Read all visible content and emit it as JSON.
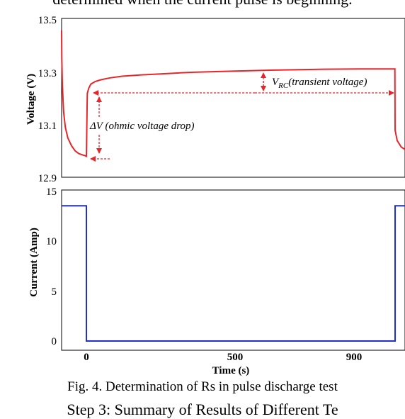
{
  "header_text": "determined when the current pulse is beginning.",
  "caption": "Fig. 4. Determination of Rs in pulse discharge test",
  "footer_text": "Step 3: Summary of Results of Different Te",
  "chart_data": [
    {
      "type": "line",
      "ylabel": "Voltage (V)",
      "yticks": [
        "13.5",
        "13.3",
        "13.1",
        "12.9"
      ],
      "ylim": [
        12.9,
        13.5
      ],
      "xlim": [
        -100,
        1200
      ],
      "series": [
        {
          "color": "#e8262a",
          "x": [
            -100,
            -99,
            -97,
            -92,
            -85,
            -75,
            -60,
            -45,
            -30,
            -15,
            -5,
            0,
            3,
            8,
            15,
            30,
            50,
            80,
            120,
            180,
            250,
            350,
            500,
            650,
            800,
            950,
            1080,
            1099,
            1100,
            1110,
            1130,
            1160,
            1200
          ],
          "y": [
            13.46,
            13.35,
            13.25,
            13.15,
            13.09,
            13.05,
            13.02,
            13.0,
            12.99,
            12.985,
            12.982,
            12.98,
            13.22,
            13.24,
            13.255,
            13.265,
            13.272,
            13.279,
            13.285,
            13.29,
            13.294,
            13.3,
            13.305,
            13.309,
            13.312,
            13.313,
            13.313,
            13.313,
            13.08,
            13.04,
            13.015,
            13.0,
            12.99
          ]
        }
      ],
      "annotations": {
        "vrc_main": "V",
        "vrc_sub": "RC",
        "vrc_text": "(transient voltage)",
        "dv_main": "ΔV",
        "dv_text": " (ohmic voltage drop)"
      }
    },
    {
      "type": "line",
      "ylabel": "Current (Amp)",
      "xlabel": "Time (s)",
      "yticks": [
        "15",
        "10",
        "5",
        "0"
      ],
      "xticks": [
        "0",
        "500",
        "900"
      ],
      "ylim": [
        0,
        15
      ],
      "xlim": [
        -100,
        1200
      ],
      "series": [
        {
          "color": "#1f2fd6",
          "x": [
            -100,
            0,
            0,
            1100,
            1100,
            1200
          ],
          "y": [
            13.5,
            13.5,
            0,
            0,
            13.5,
            13.5
          ]
        }
      ]
    }
  ]
}
